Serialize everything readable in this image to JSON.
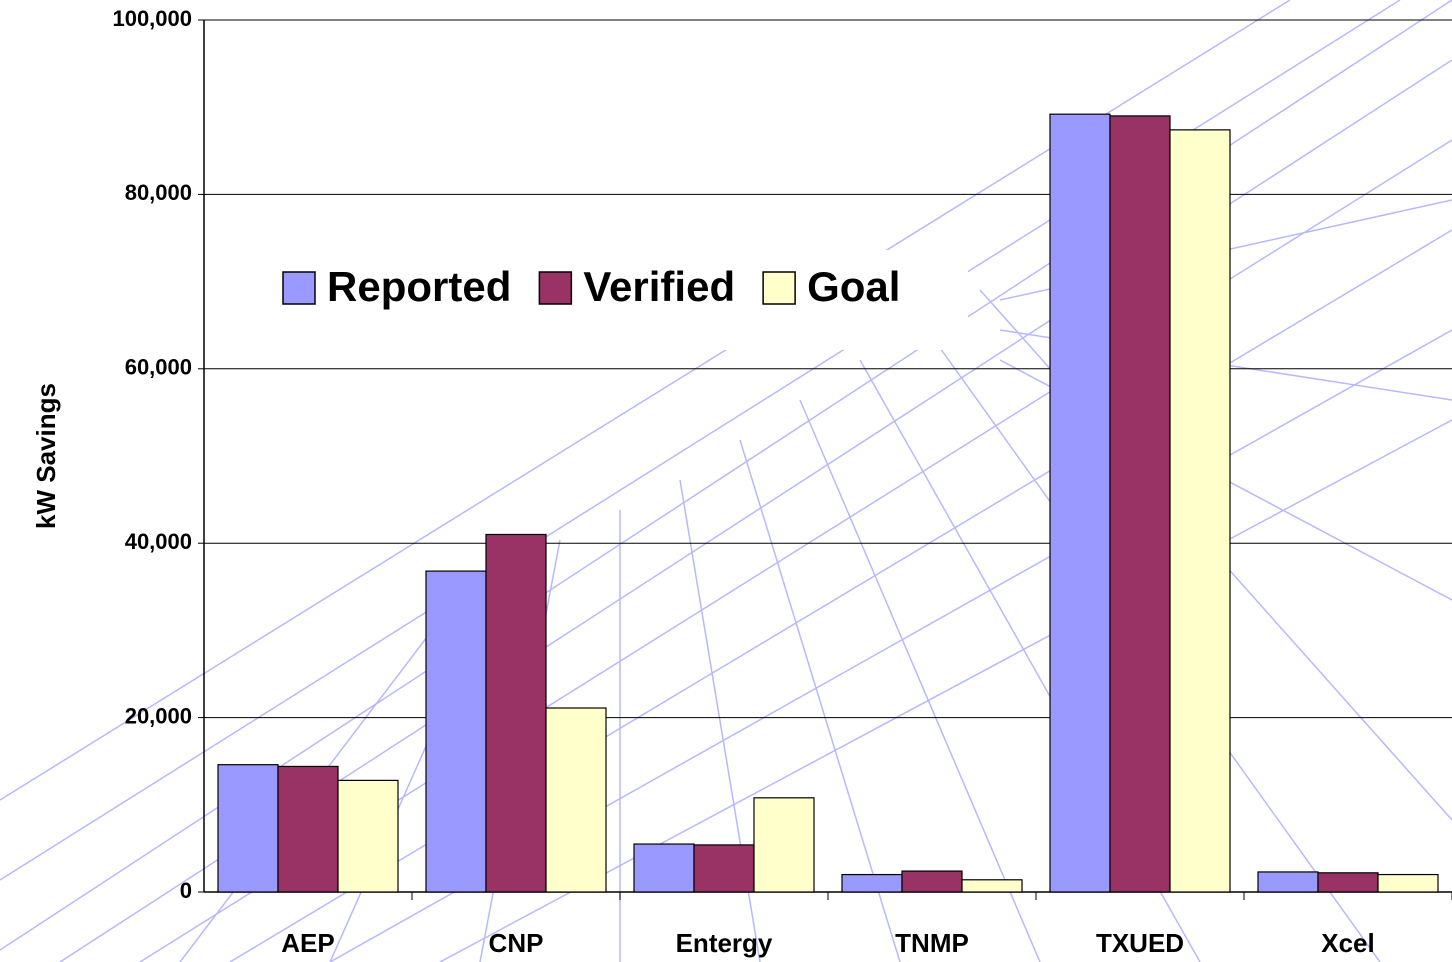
{
  "chart_data": {
    "type": "bar",
    "y_label": "kW Savings",
    "categories": [
      "AEP",
      "CNP",
      "Entergy",
      "TNMP",
      "TXUED",
      "Xcel"
    ],
    "series": [
      {
        "name": "Reported",
        "color": "#9999ff",
        "values": [
          14600,
          36800,
          5500,
          2000,
          89200,
          2300
        ]
      },
      {
        "name": "Verified",
        "color": "#993366",
        "values": [
          14400,
          41000,
          5400,
          2400,
          89000,
          2200
        ]
      },
      {
        "name": "Goal",
        "color": "#ffffcc",
        "values": [
          12800,
          21100,
          10800,
          1400,
          87400,
          2000
        ]
      }
    ],
    "ylim": [
      0,
      100000
    ],
    "yticks": [
      0,
      {
        "value": 20000,
        "label": "20,000"
      },
      {
        "value": 40000,
        "label": "40,000"
      },
      {
        "value": 60000,
        "label": "60,000"
      },
      {
        "value": 80000,
        "label": "80,000"
      },
      {
        "value": 100000,
        "label": "100,000"
      }
    ],
    "grid": true,
    "legend": "top-left"
  }
}
